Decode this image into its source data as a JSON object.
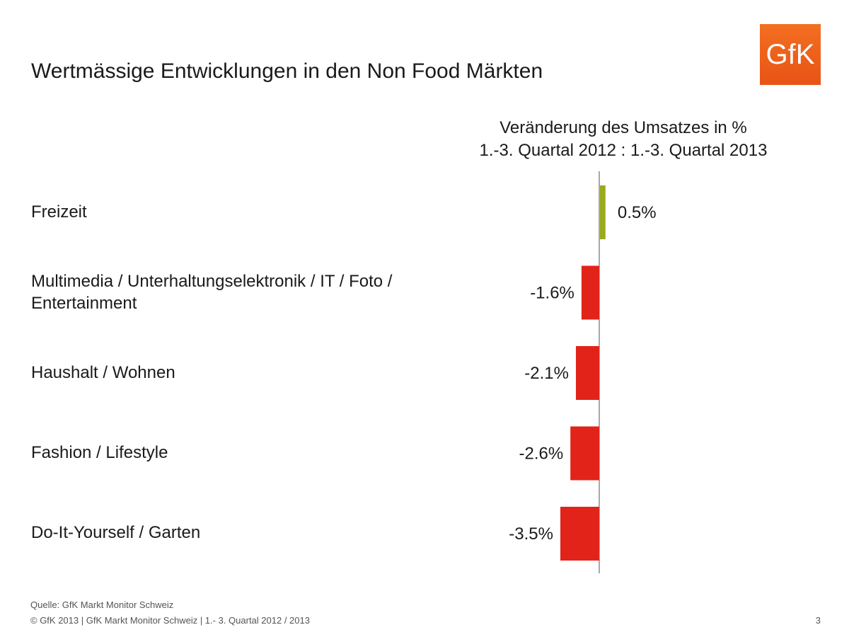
{
  "header": {
    "title": "Wertmässige Entwicklungen in den Non Food Märkten",
    "logo_text": "GfK"
  },
  "chart_heading": {
    "line1": "Veränderung des Umsatzes in %",
    "line2": "1.-3. Quartal 2012 : 1.-3. Quartal  2013"
  },
  "chart_data": {
    "type": "bar",
    "orientation": "horizontal",
    "title": "Veränderung des Umsatzes in %",
    "subtitle": "1.-3. Quartal 2012 : 1.-3. Quartal  2013",
    "categories": [
      "Freizeit",
      "Multimedia / Unterhaltungselektronik / IT / Foto / Entertainment",
      "Haushalt / Wohnen",
      "Fashion / Lifestyle",
      "Do-It-Yourself / Garten"
    ],
    "values": [
      0.5,
      -1.6,
      -2.1,
      -2.6,
      -3.5
    ],
    "value_labels": [
      "0.5%",
      "-1.6%",
      "-2.1%",
      "-2.6%",
      "-3.5%"
    ],
    "colors": {
      "positive": "#9aaa1b",
      "negative": "#e2231a"
    },
    "grid": false,
    "legend": "none"
  },
  "footer": {
    "source": "Quelle: GfK Markt Monitor Schweiz",
    "copyright": "© GfK 2013 | GfK Markt Monitor Schweiz | 1.- 3. Quartal 2012 / 2013",
    "page_number": "3"
  }
}
